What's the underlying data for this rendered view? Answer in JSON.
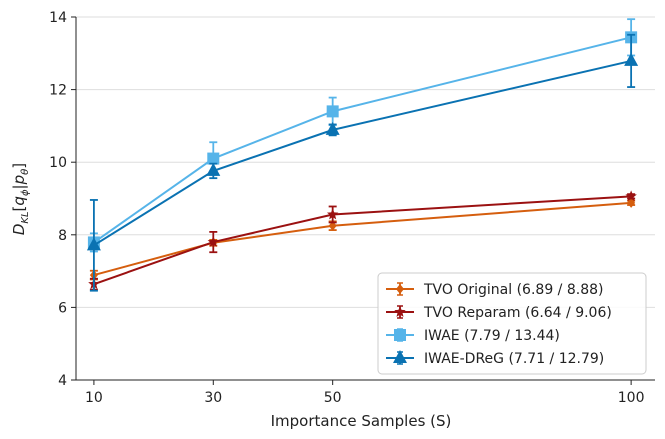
{
  "chart_data": {
    "type": "line",
    "title": "",
    "xlabel": "Importance Samples (S)",
    "ylabel": "D_KL[q_φ|p_θ]",
    "x": [
      10,
      30,
      50,
      100
    ],
    "xlim": [
      7,
      104
    ],
    "ylim": [
      4,
      14
    ],
    "x_ticks": [
      "10",
      "30",
      "50",
      "100"
    ],
    "y_ticks": [
      "4",
      "6",
      "8",
      "10",
      "12",
      "14"
    ],
    "grid": "horizontal",
    "legend_position": "lower-right",
    "series": [
      {
        "name": "TVO Original (6.89 / 8.88)",
        "color": "#d55e0e",
        "marker": "diamond",
        "values": [
          6.89,
          7.78,
          8.25,
          8.88
        ],
        "errors": [
          0.12,
          0.08,
          0.12,
          0.06
        ]
      },
      {
        "name": "TVO Reparam (6.64 / 9.06)",
        "color": "#9b1111",
        "marker": "star",
        "values": [
          6.64,
          7.8,
          8.56,
          9.06
        ],
        "errors": [
          0.15,
          0.28,
          0.22,
          0.06
        ]
      },
      {
        "name": "IWAE (7.79 / 13.44)",
        "color": "#56b4e9",
        "marker": "square",
        "values": [
          7.79,
          10.1,
          11.4,
          13.44
        ],
        "errors": [
          0.25,
          0.45,
          0.38,
          0.5
        ]
      },
      {
        "name": "IWAE-DReG (7.71 / 12.79)",
        "color": "#0a72b2",
        "marker": "triangle",
        "values": [
          7.71,
          9.76,
          10.89,
          12.79
        ],
        "errors": [
          1.25,
          0.2,
          0.15,
          0.72
        ]
      }
    ]
  }
}
